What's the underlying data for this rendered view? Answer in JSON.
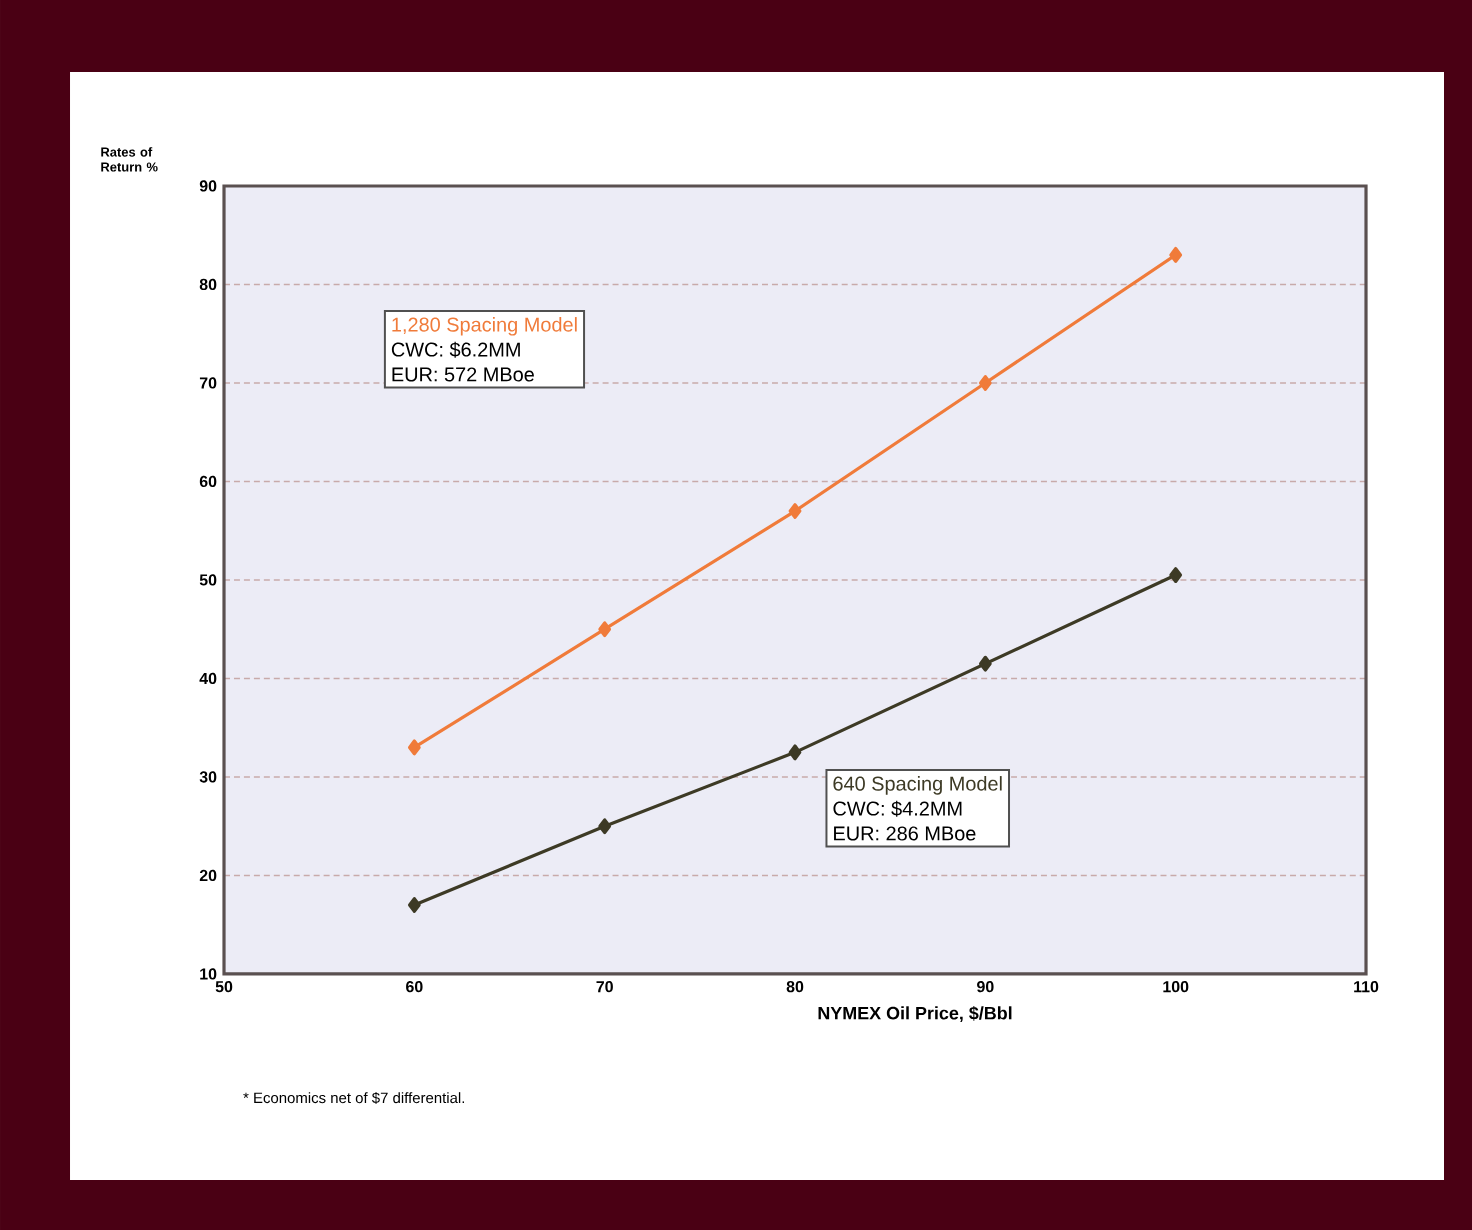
{
  "chart_data": {
    "type": "line",
    "xlabel": "NYMEX Oil Price, $/Bbl",
    "ylabel": "Rates of Return %",
    "x": [
      60,
      70,
      80,
      90,
      100
    ],
    "series": [
      {
        "name": "1,280 Spacing Model",
        "color": "#f07b3a",
        "values": [
          33,
          45,
          57,
          70,
          83
        ]
      },
      {
        "name": "640 Spacing Model",
        "color": "#3d3a25",
        "values": [
          17,
          25,
          32.5,
          41.5,
          50.5
        ]
      }
    ],
    "annotations": [
      "CWC: $6.2MM",
      "EUR: 572 MBoe",
      "CWC: $4.2MM",
      "EUR: 286 MBoe",
      "* Economics net of $7 differential."
    ],
    "xlim": [
      50,
      110
    ],
    "ylim": [
      10,
      90
    ],
    "xticks": [
      50,
      60,
      70,
      80,
      90,
      100,
      110
    ],
    "yticks": [
      10,
      20,
      30,
      40,
      50,
      60,
      70,
      80,
      90
    ],
    "grid": "y",
    "marker": "diamond",
    "line_style": "solid"
  }
}
